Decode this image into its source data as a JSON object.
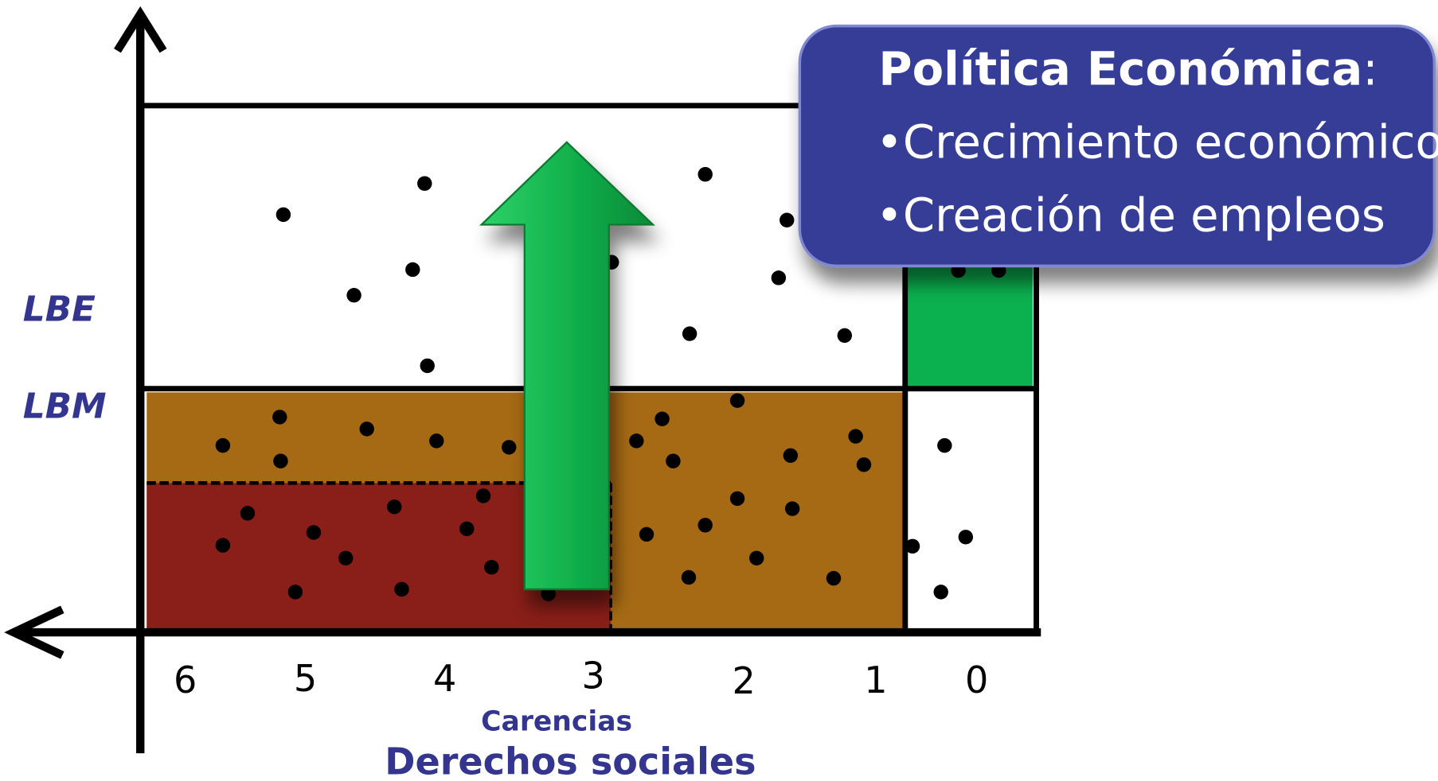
{
  "levels": [
    "LBE",
    "LBM"
  ],
  "x_labels": [
    "6",
    "5",
    "4",
    "3",
    "2",
    "1",
    "0"
  ],
  "axis_caption": "Carencias",
  "axis_title": "Derechos sociales",
  "callout": {
    "title": "Política Económica",
    "title_suffix": ":",
    "items": [
      "•Crecimiento económico",
      "•Creación de empleos"
    ]
  }
}
